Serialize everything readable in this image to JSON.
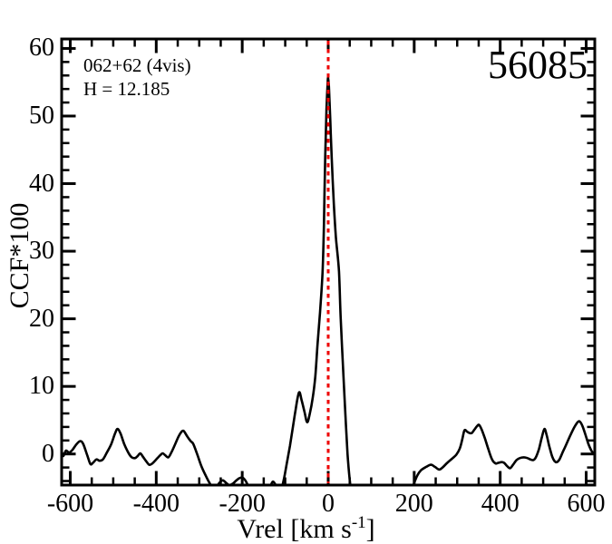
{
  "figure": {
    "title": "56085",
    "annotation_line1": "062+62 (4vis)",
    "annotation_line2": "H = 12.185"
  },
  "chart_data": {
    "type": "line",
    "title": "56085",
    "annotations": [
      "062+62 (4vis)",
      "H = 12.185"
    ],
    "xlabel": "Vrel [km s-1]",
    "xlabel_parts": {
      "main": "Vrel [km s",
      "sup": "-1",
      "end": "]"
    },
    "ylabel": "CCF*100",
    "xlim": [
      -620,
      620
    ],
    "ylim": [
      -4.6,
      61.4
    ],
    "x_major_ticks": [
      -600,
      -400,
      -200,
      0,
      200,
      400,
      600
    ],
    "x_minor_step": 50,
    "y_major_ticks": [
      0,
      10,
      20,
      30,
      40,
      50,
      60
    ],
    "y_minor_step": 2,
    "grid": false,
    "frame": true,
    "legend": "none",
    "colors": {
      "curve": "#000000",
      "ref_line": "#ee0000",
      "axes": "#000000",
      "background": "#ffffff"
    },
    "ref_line": {
      "x": 0,
      "style": "dotted",
      "color": "#ee0000"
    },
    "peak": {
      "x": 0,
      "ccf": 55.5
    },
    "series": [
      {
        "name": "CCF",
        "points": [
          [
            -620,
            0.4
          ],
          [
            -616,
            -0.3
          ],
          [
            -610,
            0.5
          ],
          [
            -603,
            0.2
          ],
          [
            -595,
            0.6
          ],
          [
            -586,
            1.4
          ],
          [
            -577,
            1.9
          ],
          [
            -570,
            1.5
          ],
          [
            -560,
            -0.3
          ],
          [
            -553,
            -1.5
          ],
          [
            -547,
            -1.3
          ],
          [
            -539,
            -0.8
          ],
          [
            -532,
            -1.0
          ],
          [
            -524,
            -0.8
          ],
          [
            -515,
            0.2
          ],
          [
            -505,
            1.4
          ],
          [
            -496,
            3.0
          ],
          [
            -490,
            3.7
          ],
          [
            -483,
            3.0
          ],
          [
            -474,
            1.4
          ],
          [
            -465,
            0.2
          ],
          [
            -457,
            -0.5
          ],
          [
            -449,
            -0.6
          ],
          [
            -443,
            -0.3
          ],
          [
            -437,
            0.1
          ],
          [
            -431,
            -0.4
          ],
          [
            -423,
            -1.1
          ],
          [
            -416,
            -1.6
          ],
          [
            -409,
            -1.4
          ],
          [
            -400,
            -0.8
          ],
          [
            -391,
            -0.2
          ],
          [
            -385,
            0.1
          ],
          [
            -379,
            -0.2
          ],
          [
            -372,
            -0.5
          ],
          [
            -365,
            0.2
          ],
          [
            -357,
            1.3
          ],
          [
            -348,
            2.6
          ],
          [
            -341,
            3.3
          ],
          [
            -336,
            3.4
          ],
          [
            -328,
            2.6
          ],
          [
            -320,
            1.9
          ],
          [
            -314,
            1.5
          ],
          [
            -305,
            0.0
          ],
          [
            -295,
            -1.8
          ],
          [
            -285,
            -3.2
          ],
          [
            -275,
            -4.4
          ],
          [
            -268,
            -4.9
          ],
          [
            -260,
            -4.8
          ],
          [
            -252,
            -4.2
          ],
          [
            -245,
            -3.9
          ],
          [
            -237,
            -4.3
          ],
          [
            -230,
            -4.6
          ],
          [
            -222,
            -4.4
          ],
          [
            -215,
            -4.0
          ],
          [
            -207,
            -3.6
          ],
          [
            -199,
            -3.5
          ],
          [
            -192,
            -4.0
          ],
          [
            -184,
            -4.9
          ],
          [
            -170,
            -5.8
          ],
          [
            -155,
            -6.2
          ],
          [
            -145,
            -6.0
          ],
          [
            -136,
            -5.0
          ],
          [
            -129,
            -4.1
          ],
          [
            -122,
            -4.6
          ],
          [
            -115,
            -5.4
          ],
          [
            -109,
            -5.2
          ],
          [
            -102,
            -3.4
          ],
          [
            -95,
            -0.9
          ],
          [
            -89,
            1.2
          ],
          [
            -83,
            3.6
          ],
          [
            -76,
            6.5
          ],
          [
            -68,
            9.1
          ],
          [
            -62,
            8.0
          ],
          [
            -55,
            6.2
          ],
          [
            -49,
            4.7
          ],
          [
            -43,
            5.9
          ],
          [
            -36,
            8.3
          ],
          [
            -30,
            11.5
          ],
          [
            -25,
            16
          ],
          [
            -19,
            21
          ],
          [
            -13,
            27
          ],
          [
            -10,
            34
          ],
          [
            -7,
            44
          ],
          [
            -4,
            51
          ],
          [
            -1,
            55.2
          ],
          [
            0,
            55.5
          ],
          [
            2,
            54
          ],
          [
            5,
            49
          ],
          [
            8,
            44
          ],
          [
            13,
            37
          ],
          [
            18,
            32
          ],
          [
            25,
            27
          ],
          [
            29,
            20
          ],
          [
            34,
            13.5
          ],
          [
            39,
            7
          ],
          [
            45,
            0
          ],
          [
            51,
            -4.4
          ],
          [
            58,
            -7
          ],
          [
            75,
            -8.8
          ],
          [
            100,
            -9.2
          ],
          [
            130,
            -9.0
          ],
          [
            160,
            -8.2
          ],
          [
            180,
            -6.8
          ],
          [
            192,
            -5.5
          ],
          [
            198,
            -4.6
          ],
          [
            207,
            -3.2
          ],
          [
            216,
            -2.4
          ],
          [
            228,
            -1.9
          ],
          [
            239,
            -1.6
          ],
          [
            248,
            -1.9
          ],
          [
            258,
            -2.3
          ],
          [
            266,
            -2.0
          ],
          [
            277,
            -1.3
          ],
          [
            288,
            -0.7
          ],
          [
            298,
            -0.1
          ],
          [
            306,
            0.8
          ],
          [
            312,
            2.2
          ],
          [
            317,
            3.5
          ],
          [
            323,
            3.3
          ],
          [
            329,
            3.1
          ],
          [
            334,
            3.1
          ],
          [
            340,
            3.6
          ],
          [
            346,
            4.1
          ],
          [
            351,
            4.3
          ],
          [
            357,
            3.6
          ],
          [
            365,
            2.2
          ],
          [
            373,
            0.6
          ],
          [
            381,
            -0.8
          ],
          [
            389,
            -1.4
          ],
          [
            396,
            -1.3
          ],
          [
            403,
            -1.2
          ],
          [
            409,
            -1.3
          ],
          [
            416,
            -1.8
          ],
          [
            423,
            -2.1
          ],
          [
            430,
            -1.6
          ],
          [
            438,
            -0.9
          ],
          [
            446,
            -0.6
          ],
          [
            455,
            -0.5
          ],
          [
            463,
            -0.6
          ],
          [
            470,
            -0.8
          ],
          [
            477,
            -0.9
          ],
          [
            483,
            -0.5
          ],
          [
            490,
            0.7
          ],
          [
            497,
            2.5
          ],
          [
            503,
            3.7
          ],
          [
            508,
            2.8
          ],
          [
            514,
            1.2
          ],
          [
            521,
            -0.4
          ],
          [
            527,
            -1.1
          ],
          [
            532,
            -1.2
          ],
          [
            538,
            -0.8
          ],
          [
            545,
            0.2
          ],
          [
            553,
            1.3
          ],
          [
            562,
            2.6
          ],
          [
            572,
            3.9
          ],
          [
            580,
            4.7
          ],
          [
            585,
            4.8
          ],
          [
            591,
            4.2
          ],
          [
            598,
            2.9
          ],
          [
            605,
            1.5
          ],
          [
            612,
            0.5
          ],
          [
            617,
            0.1
          ],
          [
            620,
            0.0
          ]
        ]
      }
    ],
    "layout": {
      "plot_left": 68,
      "plot_top": 43,
      "plot_right": 656,
      "plot_bottom": 535,
      "major_tick_len": 14,
      "minor_tick_len": 7
    }
  }
}
